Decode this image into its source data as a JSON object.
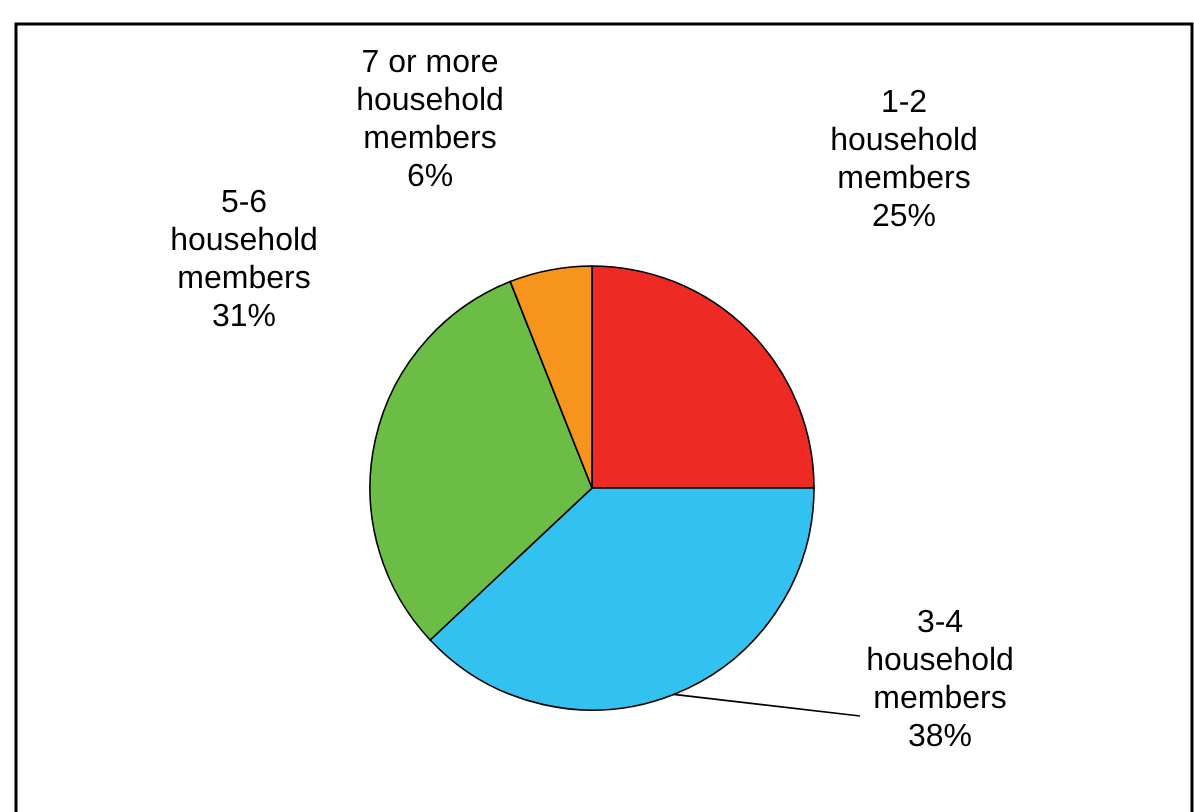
{
  "chart_data": {
    "type": "pie",
    "categories": [
      "1-2 household members",
      "3-4 household members",
      "5-6 household members",
      "7 or more household members"
    ],
    "values": [
      25,
      38,
      31,
      6
    ],
    "value_labels": [
      "25%",
      "38%",
      "31%",
      "6%"
    ],
    "colors": [
      "#ee2a24",
      "#33c1ef",
      "#6cbd45",
      "#f7941d"
    ]
  }
}
